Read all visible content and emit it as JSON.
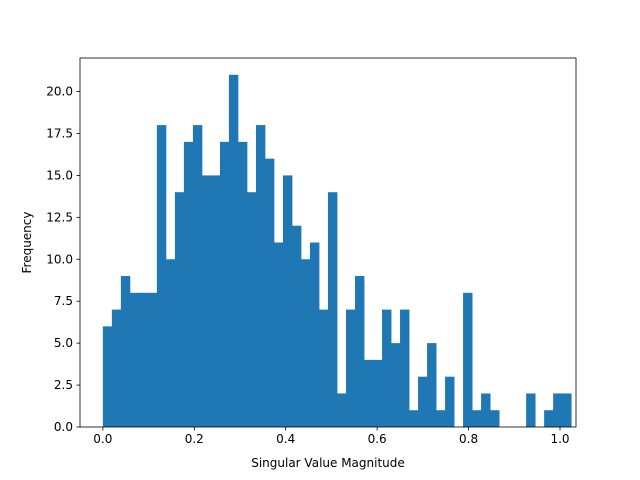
{
  "chart_data": {
    "type": "bar",
    "title": "",
    "xlabel": "Singular Value Magnitude",
    "ylabel": "Frequency",
    "xlim": [
      -0.05,
      1.035
    ],
    "ylim": [
      0,
      22.0
    ],
    "bin_width": 0.0197,
    "bin_start": 0.0,
    "values": [
      6,
      7,
      9,
      8,
      8,
      8,
      18,
      10,
      14,
      17,
      18,
      15,
      15,
      17,
      21,
      17,
      14,
      18,
      16,
      11,
      15,
      12,
      10,
      11,
      7,
      14,
      2,
      7,
      9,
      4,
      4,
      7,
      5,
      7,
      1,
      3,
      5,
      1,
      3,
      0,
      8,
      1,
      2,
      1,
      0,
      0,
      0,
      2,
      0,
      1,
      2,
      2
    ],
    "bar_color": "#1f77b4",
    "x_ticks": [
      0.0,
      0.2,
      0.4,
      0.6,
      0.8,
      1.0
    ],
    "x_tick_labels": [
      "0.0",
      "0.2",
      "0.4",
      "0.6",
      "0.8",
      "1.0"
    ],
    "y_ticks": [
      0,
      2.5,
      5,
      7.5,
      10,
      12.5,
      15,
      17.5,
      20
    ],
    "y_tick_labels": [
      "0.0",
      "2.5",
      "5.0",
      "7.5",
      "10.0",
      "12.5",
      "15.0",
      "17.5",
      "20.0"
    ],
    "grid": false,
    "legend": "none"
  }
}
